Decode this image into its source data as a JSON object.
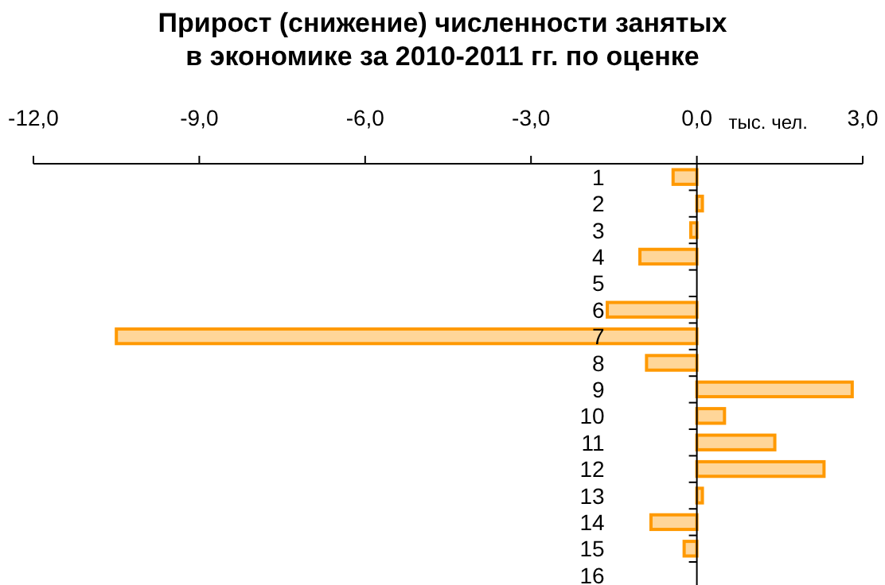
{
  "chart_data": {
    "type": "bar",
    "orientation": "horizontal",
    "title": "Прирост (снижение) численности занятых\nв экономике за 2010-2011 гг. по оценке",
    "xlabel": "тыс. чел.",
    "categories": [
      "1",
      "2",
      "3",
      "4",
      "5",
      "6",
      "7",
      "8",
      "9",
      "10",
      "11",
      "12",
      "13",
      "14",
      "15",
      "16"
    ],
    "values": [
      -0.43,
      0.1,
      -0.11,
      -1.03,
      0,
      -1.62,
      -10.5,
      -0.91,
      2.81,
      0.5,
      1.41,
      2.3,
      0.1,
      -0.83,
      -0.23,
      0
    ],
    "color": "#ff9900",
    "xlim": [
      -12,
      3
    ],
    "xticks": [
      {
        "value": -12,
        "label": "-12,0"
      },
      {
        "value": -9,
        "label": "-9,0"
      },
      {
        "value": -6,
        "label": "-6,0"
      },
      {
        "value": -3,
        "label": "-3,0"
      },
      {
        "value": 0,
        "label": "0,0"
      },
      {
        "value": 3,
        "label": "3,0"
      }
    ],
    "tick_labels": true
  }
}
